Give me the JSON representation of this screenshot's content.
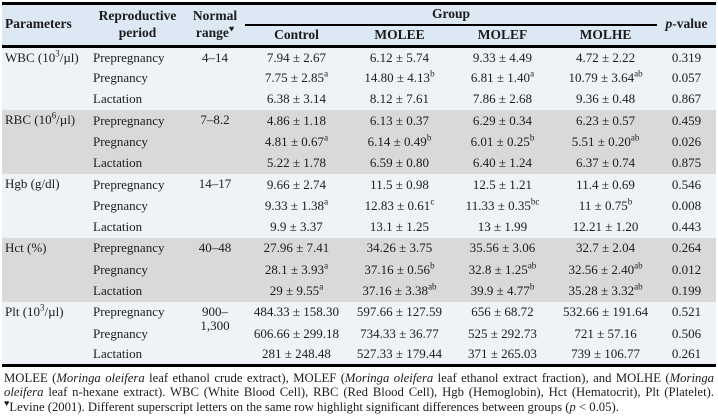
{
  "table": {
    "header": {
      "parameters": "Parameters",
      "reproductive_period": "Reproductive period",
      "normal_range": "Normal range^♥",
      "group": "Group",
      "group_columns": [
        "Control",
        "MOLEE",
        "MOLEF",
        "MOLHE"
      ],
      "p_value": "*p*-value"
    },
    "blocks": [
      {
        "parameter": "WBC (10^3/µl)",
        "normal_range": "4–14",
        "rows": [
          {
            "period": "Prepregnancy",
            "values": [
              "7.94 ± 2.67",
              "6.12 ± 5.74",
              "9.33 ± 4.49",
              "4.72 ± 2.22"
            ],
            "p": "0.319"
          },
          {
            "period": "Pregnancy",
            "values": [
              "7.75 ± 2.85^a",
              "14.80 ± 4.13^b",
              "6.81 ± 1.40^a",
              "10.79 ± 3.64^ab"
            ],
            "p": "0.057"
          },
          {
            "period": "Lactation",
            "values": [
              "6.38 ± 3.14",
              "8.12 ± 7.61",
              "7.86 ± 2.68",
              "9.36 ± 0.48"
            ],
            "p": "0.867"
          }
        ]
      },
      {
        "parameter": "RBC (10^6/µl)",
        "normal_range": "7–8.2",
        "rows": [
          {
            "period": "Prepregnancy",
            "values": [
              "4.86 ± 1.18",
              "6.13 ± 0.37",
              "6.29 ± 0.34",
              "6.23 ± 0.57"
            ],
            "p": "0.459"
          },
          {
            "period": "Pregnancy",
            "values": [
              "4.81 ± 0.67^a",
              "6.14 ± 0.49^b",
              "6.01 ± 0.25^b",
              "5.51 ± 0.20^ab"
            ],
            "p": "0.026"
          },
          {
            "period": "Lactation",
            "values": [
              "5.22 ± 1.78",
              "6.59 ± 0.80",
              "6.40 ± 1.24",
              "6.37 ± 0.74"
            ],
            "p": "0.875"
          }
        ]
      },
      {
        "parameter": "Hgb (g/dl)",
        "normal_range": "14–17",
        "rows": [
          {
            "period": "Prepregnancy",
            "values": [
              "9.66 ± 2.74",
              "11.5 ± 0.98",
              "12.5 ± 1.21",
              "11.4 ± 0.69"
            ],
            "p": "0.546"
          },
          {
            "period": "Pregnancy",
            "values": [
              "9.33 ± 1.38^a",
              "12.83 ± 0.61^c",
              "11.33 ± 0.35^bc",
              "11 ± 0.75^b"
            ],
            "p": "0.008"
          },
          {
            "period": "Lactation",
            "values": [
              "9.9 ± 3.37",
              "13.1 ± 1.25",
              "13 ± 1.99",
              "12.21 ± 1.20"
            ],
            "p": "0.443"
          }
        ]
      },
      {
        "parameter": "Hct (%)",
        "normal_range": "40–48",
        "rows": [
          {
            "period": "Prepregnancy",
            "values": [
              "27.96 ± 7.41",
              "34.26 ± 3.75",
              "35.56 ± 3.06",
              "32.7 ± 2.04"
            ],
            "p": "0.264"
          },
          {
            "period": "Pregnancy",
            "values": [
              "28.1 ± 3.93^a",
              "37.16 ± 0.56^b",
              "32.8 ± 1.25^ab",
              "32.56 ± 2.40^ab"
            ],
            "p": "0.012"
          },
          {
            "period": "Lactation",
            "values": [
              "29 ± 9.55^a",
              "37.16 ± 3.38^ab",
              "39.9 ± 4.77^b",
              "35.28 ± 3.32^ab"
            ],
            "p": "0.199"
          }
        ]
      },
      {
        "parameter": "Plt (10^3/µl)",
        "normal_range": "900–1,300",
        "rows": [
          {
            "period": "Prepregnancy",
            "values": [
              "484.33 ± 158.30",
              "597.66 ± 127.59",
              "656 ± 68.72",
              "532.66 ± 191.64"
            ],
            "p": "0.521"
          },
          {
            "period": "Pregnancy",
            "values": [
              "606.66 ± 299.18",
              "734.33 ± 36.77",
              "525 ± 292.73",
              "721 ± 57.16"
            ],
            "p": "0.506"
          },
          {
            "period": "Lactation",
            "values": [
              "281 ± 248.48",
              "527.33 ± 179.44",
              "371 ± 265.03",
              "739 ± 106.77"
            ],
            "p": "0.261"
          }
        ]
      }
    ]
  },
  "footnote": "MOLEE (*Moringa oleifera* leaf ethanol crude extract), MOLEF (*Moringa oleifera* leaf ethanol extract fraction), and MOLHE (*Moringa oleifera* leaf n-hexane extract). WBC (White Blood Cell), RBC (Red Blood Cell), Hgb (Hemoglobin), Hct (Hematocrit), Plt (Platelet). ^♥Levine (2001). Different superscript letters on the same row highlight significant differences between groups (*p* < 0.05).",
  "colors": {
    "header_bg": "#dce8f4",
    "block_light": "#eff2f6",
    "block_gray": "#d9d9d9",
    "rule": "#000000"
  }
}
